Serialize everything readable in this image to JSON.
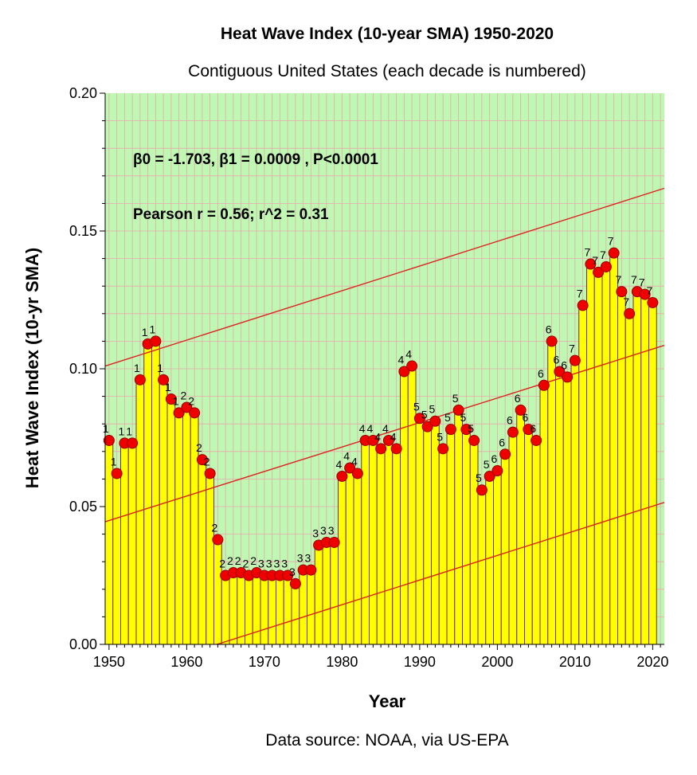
{
  "chart_data": {
    "type": "bar",
    "title": "Heat Wave Index (10-year SMA) 1950-2020",
    "subtitle": "Contiguous United States (each decade is numbered)",
    "xlabel": "Year",
    "ylabel": "Heat Wave Index (10-yr SMA)",
    "xlim": [
      1949.5,
      2021.5
    ],
    "ylim": [
      0,
      0.2
    ],
    "x_ticks": [
      1950,
      1960,
      1970,
      1980,
      1990,
      2000,
      2010,
      2020
    ],
    "y_ticks": [
      "0.00",
      "0.05",
      "0.10",
      "0.15",
      "0.20"
    ],
    "grid": true,
    "years": [
      1950,
      1951,
      1952,
      1953,
      1954,
      1955,
      1956,
      1957,
      1958,
      1959,
      1960,
      1961,
      1962,
      1963,
      1964,
      1965,
      1966,
      1967,
      1968,
      1969,
      1970,
      1971,
      1972,
      1973,
      1974,
      1975,
      1976,
      1977,
      1978,
      1979,
      1980,
      1981,
      1982,
      1983,
      1984,
      1985,
      1986,
      1987,
      1988,
      1989,
      1990,
      1991,
      1992,
      1993,
      1994,
      1995,
      1996,
      1997,
      1998,
      1999,
      2000,
      2001,
      2002,
      2003,
      2004,
      2005,
      2006,
      2007,
      2008,
      2009,
      2010,
      2011,
      2012,
      2013,
      2014,
      2015,
      2016,
      2017,
      2018,
      2019,
      2020
    ],
    "values": [
      0.074,
      0.062,
      0.073,
      0.073,
      0.096,
      0.109,
      0.11,
      0.096,
      0.089,
      0.084,
      0.086,
      0.084,
      0.067,
      0.062,
      0.038,
      0.025,
      0.026,
      0.026,
      0.025,
      0.026,
      0.025,
      0.025,
      0.025,
      0.025,
      0.022,
      0.027,
      0.027,
      0.036,
      0.037,
      0.037,
      0.061,
      0.064,
      0.062,
      0.074,
      0.074,
      0.071,
      0.074,
      0.071,
      0.099,
      0.101,
      0.082,
      0.079,
      0.081,
      0.071,
      0.078,
      0.085,
      0.078,
      0.074,
      0.056,
      0.061,
      0.063,
      0.069,
      0.077,
      0.085,
      0.078,
      0.074,
      0.094,
      0.11,
      0.099,
      0.097,
      0.103,
      0.123,
      0.138,
      0.135,
      0.137,
      0.142,
      0.128,
      0.12,
      0.128,
      0.127,
      0.124
    ],
    "decade_labels": [
      "1",
      "1",
      "1",
      "1",
      "1",
      "1",
      "1",
      "1",
      "1",
      "1",
      "2",
      "2",
      "2",
      "2",
      "2",
      "2",
      "2",
      "2",
      "2",
      "2",
      "3",
      "3",
      "3",
      "3",
      "3",
      "3",
      "3",
      "3",
      "3",
      "3",
      "4",
      "4",
      "4",
      "4",
      "4",
      "4",
      "4",
      "4",
      "4",
      "4",
      "5",
      "5",
      "5",
      "5",
      "5",
      "5",
      "5",
      "5",
      "5",
      "5",
      "6",
      "6",
      "6",
      "6",
      "6",
      "6",
      "6",
      "6",
      "6",
      "6",
      "7",
      "7",
      "7",
      "7",
      "7",
      "7",
      "7",
      "7",
      "7",
      "7",
      "7"
    ],
    "regression_lines": [
      {
        "name": "upper",
        "start": [
          1949.5,
          0.101
        ],
        "end": [
          2021.5,
          0.1655
        ]
      },
      {
        "name": "fit",
        "start": [
          1949.5,
          0.0445
        ],
        "end": [
          2021.5,
          0.1085
        ]
      },
      {
        "name": "lower",
        "start": [
          1963.9,
          0.0
        ],
        "end": [
          2021.5,
          0.0515
        ]
      }
    ],
    "annotations": {
      "coefficients": "β0 = -1.703, β1 = 0.0009 , P<0.0001",
      "pearson": "Pearson r = 0.56; r^2 = 0.31"
    },
    "source": "Data source: NOAA, via US-EPA",
    "colors": {
      "plot_bg": "#bff8b2",
      "grid": "#e8a8ae",
      "bar_fill": "#ffff00",
      "bar_stroke": "#7a2a34",
      "marker": "#ee0000",
      "marker_stroke": "#9a0000",
      "reg_line": "#dd2222",
      "text": "#000000"
    }
  }
}
